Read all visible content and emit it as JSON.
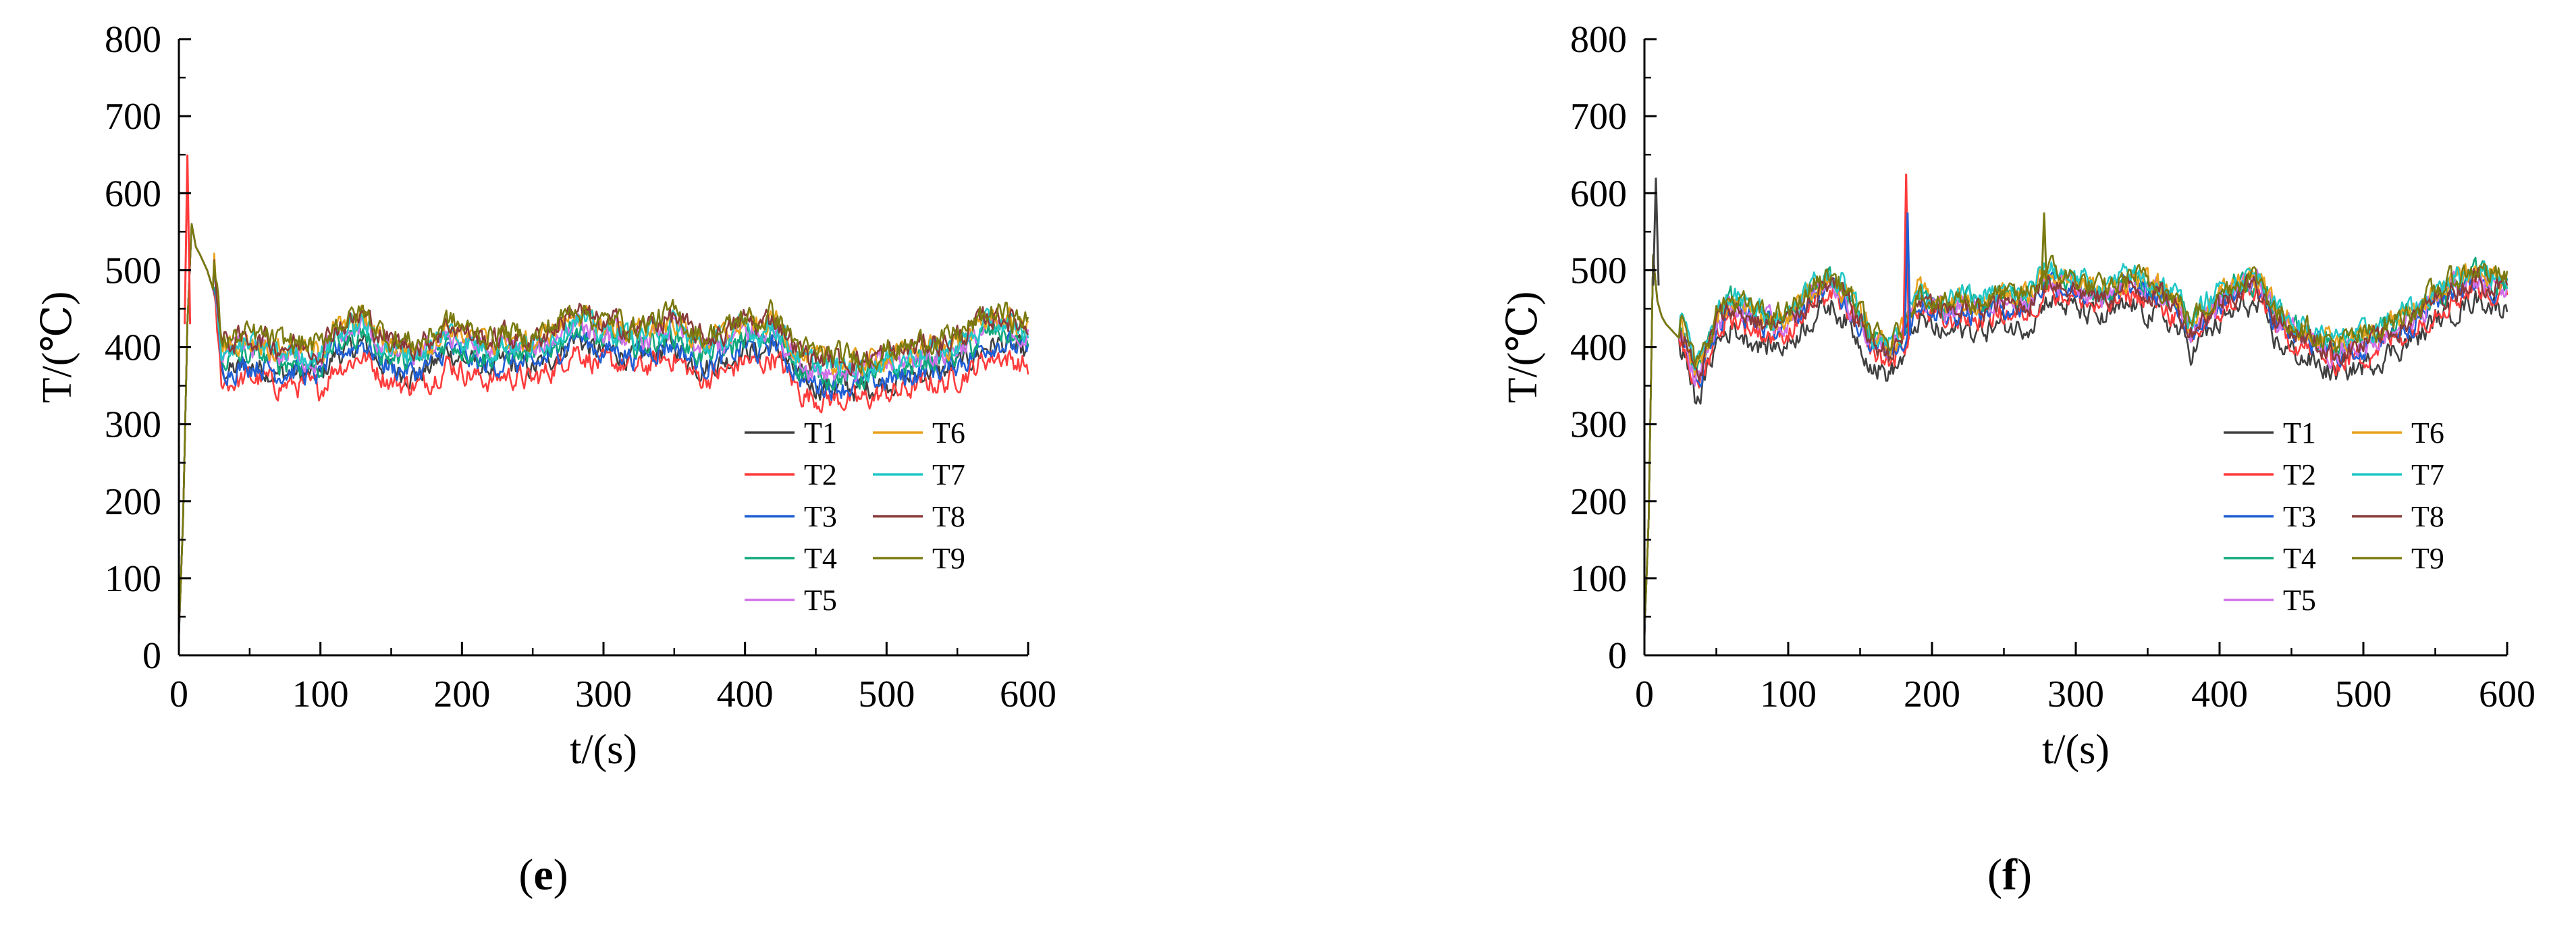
{
  "colors": {
    "T1": "#404040",
    "T2": "#ff3b3b",
    "T3": "#1f5fd6",
    "T4": "#10a87a",
    "T5": "#d070e8",
    "T6": "#e8a21c",
    "T7": "#22c7c7",
    "T8": "#8a3a3a",
    "T9": "#7a7a10"
  },
  "chart_data": [
    {
      "type": "line",
      "panel_label": "e",
      "xlabel": "t/(s)",
      "ylabel": "T/(℃)",
      "xlim": [
        0,
        600
      ],
      "ylim": [
        0,
        800
      ],
      "x_ticks": [
        "0",
        "100",
        "200",
        "300",
        "400",
        "500",
        "600"
      ],
      "y_ticks": [
        "0",
        "100",
        "200",
        "300",
        "400",
        "500",
        "600",
        "700",
        "800"
      ],
      "legend": "lower-right, two columns",
      "x": [
        0,
        3,
        6,
        9,
        12,
        15,
        20,
        25,
        30,
        40,
        50,
        60,
        70,
        80,
        90,
        100,
        110,
        120,
        130,
        140,
        150,
        160,
        170,
        180,
        190,
        200,
        210,
        220,
        230,
        240,
        250,
        260,
        270,
        280,
        290,
        300,
        310,
        320,
        330,
        340,
        350,
        360,
        370,
        380,
        390,
        400,
        410,
        420,
        430,
        440,
        450,
        460,
        470,
        480,
        490,
        500,
        510,
        520,
        530,
        540,
        550,
        560,
        570,
        580,
        590,
        600
      ],
      "base": [
        25,
        180,
        430,
        560,
        530,
        520,
        500,
        470,
        365,
        365,
        370,
        368,
        360,
        362,
        358,
        355,
        385,
        390,
        400,
        380,
        365,
        362,
        360,
        372,
        390,
        380,
        372,
        366,
        374,
        370,
        366,
        378,
        390,
        410,
        395,
        385,
        390,
        380,
        385,
        392,
        398,
        380,
        368,
        375,
        380,
        395,
        385,
        400,
        375,
        350,
        345,
        343,
        342,
        340,
        345,
        350,
        352,
        358,
        365,
        362,
        372,
        380,
        395,
        400,
        392,
        385
      ],
      "series": [
        {
          "name": "T1",
          "offset": 5
        },
        {
          "name": "T2",
          "offset": -10
        },
        {
          "name": "T3",
          "offset": 8
        },
        {
          "name": "T4",
          "offset": 20
        },
        {
          "name": "T5",
          "offset": 28
        },
        {
          "name": "T6",
          "offset": 38
        },
        {
          "name": "T7",
          "offset": 32
        },
        {
          "name": "T8",
          "offset": 42
        },
        {
          "name": "T9",
          "offset": 46
        }
      ],
      "annotations": [
        {
          "series": "T2",
          "x": 6,
          "y": 650
        }
      ]
    },
    {
      "type": "line",
      "panel_label": "f",
      "xlabel": "t/(s)",
      "ylabel": "T/(℃)",
      "xlim": [
        0,
        600
      ],
      "ylim": [
        0,
        800
      ],
      "x_ticks": [
        "0",
        "100",
        "200",
        "300",
        "400",
        "500",
        "600"
      ],
      "y_ticks": [
        "0",
        "100",
        "200",
        "300",
        "400",
        "500",
        "600",
        "700",
        "800"
      ],
      "legend": "lower-right, two columns",
      "x": [
        0,
        3,
        6,
        9,
        12,
        15,
        20,
        25,
        30,
        35,
        40,
        50,
        60,
        70,
        80,
        90,
        100,
        110,
        120,
        130,
        140,
        150,
        160,
        170,
        180,
        190,
        200,
        210,
        220,
        230,
        240,
        250,
        260,
        270,
        280,
        290,
        300,
        310,
        320,
        330,
        340,
        350,
        360,
        370,
        380,
        390,
        400,
        410,
        420,
        430,
        440,
        450,
        460,
        470,
        480,
        490,
        500,
        510,
        520,
        530,
        540,
        550,
        560,
        570,
        580,
        590,
        600
      ],
      "base": [
        25,
        180,
        520,
        460,
        440,
        430,
        420,
        410,
        390,
        350,
        360,
        420,
        440,
        430,
        420,
        415,
        420,
        440,
        460,
        470,
        450,
        420,
        390,
        380,
        400,
        450,
        440,
        430,
        440,
        435,
        440,
        445,
        440,
        450,
        480,
        470,
        465,
        455,
        450,
        460,
        470,
        460,
        455,
        440,
        410,
        430,
        445,
        460,
        470,
        460,
        420,
        410,
        400,
        390,
        380,
        385,
        390,
        400,
        410,
        420,
        430,
        450,
        460,
        470,
        480,
        470,
        465
      ],
      "series": [
        {
          "name": "T1",
          "offset": -15
        },
        {
          "name": "T2",
          "offset": 0
        },
        {
          "name": "T3",
          "offset": 10
        },
        {
          "name": "T4",
          "offset": 18
        },
        {
          "name": "T5",
          "offset": 14
        },
        {
          "name": "T6",
          "offset": 22
        },
        {
          "name": "T7",
          "offset": 26
        },
        {
          "name": "T8",
          "offset": 12
        },
        {
          "name": "T9",
          "offset": 24
        }
      ],
      "annotations": [
        {
          "series": "T2",
          "x": 182,
          "y": 625
        },
        {
          "series": "T3",
          "x": 183,
          "y": 575
        },
        {
          "series": "T9",
          "x": 278,
          "y": 575
        },
        {
          "series": "T1",
          "x": 8,
          "y": 620
        }
      ]
    }
  ]
}
